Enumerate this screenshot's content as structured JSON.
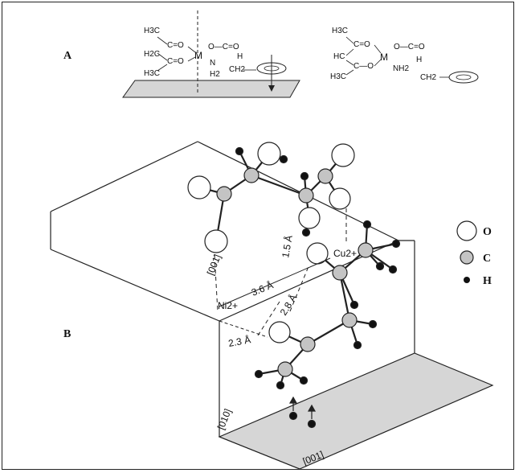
{
  "panel_a": {
    "label": "A",
    "left_structure": {
      "ch3_top": "H3C",
      "c_eq_o_top": "C=O",
      "hc_mid": "H2C",
      "ch3_bottom": "H3C",
      "c_eq_o_bottom": "C=O",
      "metal": "M",
      "o_c_o": "O—C=O",
      "n": "N",
      "h": "H",
      "h2": "H2",
      "ch2": "CH2"
    },
    "right_structure": {
      "ch3_top": "H3C",
      "c_eq_o_top": "C=O",
      "hc_mid": "HC",
      "ch3_bottom": "H3C",
      "c_o_bottom": "C—O",
      "metal": "M",
      "o_c_o": "O—C=O",
      "nh2": "NH2",
      "h": "H",
      "ch2": "CH2"
    }
  },
  "panel_b": {
    "label": "B",
    "axis_top": "[001]",
    "axis_front": "[010]",
    "axis_bottom": "[001]",
    "ni_label": "Ni2+",
    "cu_label": "Cu2+",
    "dist_ni_cu": "3.6 Å",
    "dist_diag": "2.8 Å",
    "dist_left": "2.3 Å",
    "dist_top": "1.5 Å"
  },
  "legend": [
    {
      "symbol": "O",
      "kind": "large-open"
    },
    {
      "symbol": "C",
      "kind": "medium-gray"
    },
    {
      "symbol": "H",
      "kind": "small-black"
    }
  ],
  "colors": {
    "line": "#222222",
    "carbon": "#c4c4c4",
    "plane_fill": "#d6d6d6"
  }
}
